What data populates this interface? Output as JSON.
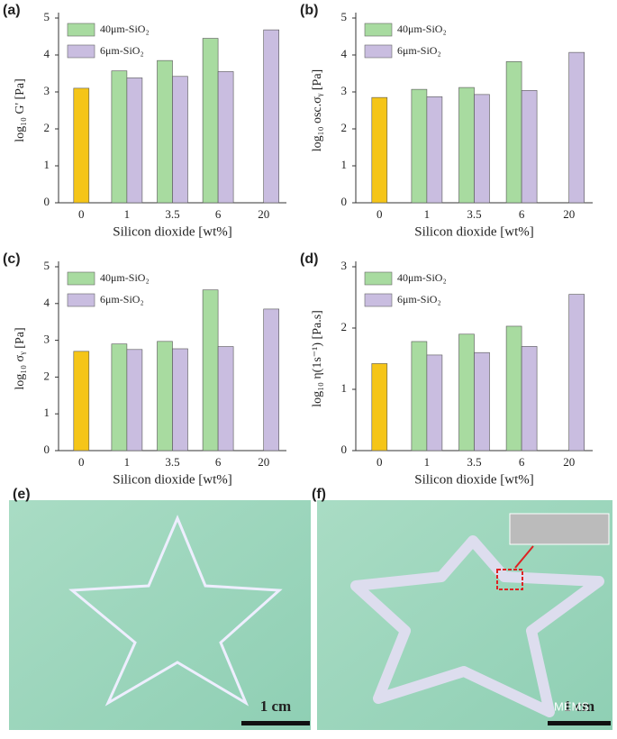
{
  "chart_data": [
    {
      "type": "bar",
      "panel": "(a)",
      "x_label": "Silicon dioxide [wt%]",
      "y_label": "log₁₀ G' [Pa]",
      "categories": [
        "0",
        "1",
        "3.5",
        "6",
        "20"
      ],
      "ylim": [
        0,
        5
      ],
      "yticks": [
        0,
        1,
        2,
        3,
        4,
        5
      ],
      "series": [
        {
          "color": "#f5c518",
          "values": [
            3.1,
            null,
            null,
            null,
            null
          ]
        },
        {
          "name": "40μm-SiO₂",
          "color": "#a8dba0",
          "values": [
            null,
            3.57,
            3.85,
            4.45,
            null
          ]
        },
        {
          "name": "6μm-SiO₂",
          "color": "#c9bde0",
          "values": [
            null,
            3.38,
            3.42,
            3.55,
            4.68
          ]
        }
      ]
    },
    {
      "type": "bar",
      "panel": "(b)",
      "x_label": "Silicon dioxide [wt%]",
      "y_label": "log₁₀ osc.σᵧ [Pa]",
      "categories": [
        "0",
        "1",
        "3.5",
        "6",
        "20"
      ],
      "ylim": [
        0,
        5
      ],
      "yticks": [
        0,
        1,
        2,
        3,
        4,
        5
      ],
      "series": [
        {
          "color": "#f5c518",
          "values": [
            2.85,
            null,
            null,
            null,
            null
          ]
        },
        {
          "name": "40μm-SiO₂",
          "color": "#a8dba0",
          "values": [
            null,
            3.07,
            3.12,
            3.82,
            null
          ]
        },
        {
          "name": "6μm-SiO₂",
          "color": "#c9bde0",
          "values": [
            null,
            2.87,
            2.93,
            3.04,
            4.07
          ]
        }
      ]
    },
    {
      "type": "bar",
      "panel": "(c)",
      "x_label": "Silicon dioxide [wt%]",
      "y_label": "log₁₀ σᵧ [Pa]",
      "categories": [
        "0",
        "1",
        "3.5",
        "6",
        "20"
      ],
      "ylim": [
        0,
        5
      ],
      "yticks": [
        0,
        1,
        2,
        3,
        4,
        5
      ],
      "series": [
        {
          "color": "#f5c518",
          "values": [
            2.7,
            null,
            null,
            null,
            null
          ]
        },
        {
          "name": "40μm-SiO₂",
          "color": "#a8dba0",
          "values": [
            null,
            2.9,
            2.97,
            4.37,
            null
          ]
        },
        {
          "name": "6μm-SiO₂",
          "color": "#c9bde0",
          "values": [
            null,
            2.75,
            2.77,
            2.83,
            3.85
          ]
        }
      ]
    },
    {
      "type": "bar",
      "panel": "(d)",
      "x_label": "Silicon dioxide [wt%]",
      "y_label": "log₁₀ η(1s⁻¹) [Pa.s]",
      "categories": [
        "0",
        "1",
        "3.5",
        "6",
        "20"
      ],
      "ylim": [
        0,
        3
      ],
      "yticks": [
        0,
        1,
        2,
        3
      ],
      "series": [
        {
          "color": "#f5c518",
          "values": [
            1.42,
            null,
            null,
            null,
            null
          ]
        },
        {
          "name": "40μm-SiO₂",
          "color": "#a8dba0",
          "values": [
            null,
            1.78,
            1.9,
            2.03,
            null
          ]
        },
        {
          "name": "6μm-SiO₂",
          "color": "#c9bde0",
          "values": [
            null,
            1.56,
            1.6,
            1.7,
            2.55
          ]
        }
      ]
    }
  ],
  "photos": [
    {
      "panel": "(e)",
      "scale_label": "1 cm"
    },
    {
      "panel": "(f)",
      "scale_label": "1 cm",
      "watermark": "MEMS"
    }
  ]
}
